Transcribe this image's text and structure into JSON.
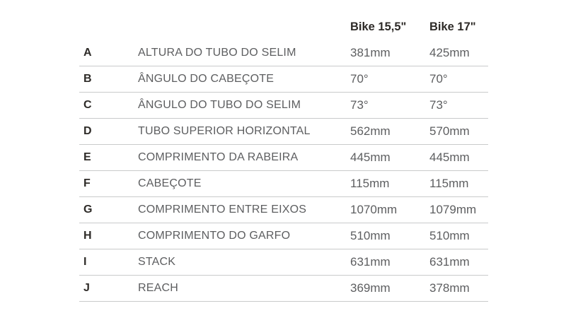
{
  "table": {
    "columns": [
      "Bike 15,5\"",
      "Bike 17\""
    ],
    "rows": [
      {
        "letter": "A",
        "label": "ALTURA DO TUBO DO SELIM",
        "v1": "381mm",
        "v2": "425mm"
      },
      {
        "letter": "B",
        "label": "ÂNGULO DO CABEÇOTE",
        "v1": "70°",
        "v2": "70°"
      },
      {
        "letter": "C",
        "label": "ÂNGULO DO TUBO DO SELIM",
        "v1": "73°",
        "v2": "73°"
      },
      {
        "letter": "D",
        "label": "TUBO SUPERIOR HORIZONTAL",
        "v1": "562mm",
        "v2": "570mm"
      },
      {
        "letter": "E",
        "label": "COMPRIMENTO DA RABEIRA",
        "v1": "445mm",
        "v2": "445mm"
      },
      {
        "letter": "F",
        "label": "CABEÇOTE",
        "v1": "115mm",
        "v2": "115mm"
      },
      {
        "letter": "G",
        "label": "COMPRIMENTO ENTRE EIXOS",
        "v1": "1070mm",
        "v2": "1079mm"
      },
      {
        "letter": "H",
        "label": "COMPRIMENTO DO GARFO",
        "v1": "510mm",
        "v2": "510mm"
      },
      {
        "letter": "I",
        "label": "STACK",
        "v1": "631mm",
        "v2": "631mm"
      },
      {
        "letter": "J",
        "label": "REACH",
        "v1": "369mm",
        "v2": "378mm"
      }
    ],
    "colors": {
      "heading_text": "#2e2b28",
      "body_text": "#5d5e60",
      "divider": "#c9cacb",
      "background": "#ffffff"
    }
  },
  "chart_data": {
    "type": "table",
    "title": "",
    "columns": [
      "",
      "",
      "Bike 15,5\"",
      "Bike 17\""
    ],
    "rows": [
      [
        "A",
        "ALTURA DO TUBO DO SELIM",
        "381mm",
        "425mm"
      ],
      [
        "B",
        "ÂNGULO DO CABEÇOTE",
        "70°",
        "70°"
      ],
      [
        "C",
        "ÂNGULO DO TUBO DO SELIM",
        "73°",
        "73°"
      ],
      [
        "D",
        "TUBO SUPERIOR HORIZONTAL",
        "562mm",
        "570mm"
      ],
      [
        "E",
        "COMPRIMENTO DA RABEIRA",
        "445mm",
        "445mm"
      ],
      [
        "F",
        "CABEÇOTE",
        "115mm",
        "115mm"
      ],
      [
        "G",
        "COMPRIMENTO ENTRE EIXOS",
        "1070mm",
        "1079mm"
      ],
      [
        "H",
        "COMPRIMENTO DO GARFO",
        "510mm",
        "510mm"
      ],
      [
        "I",
        "STACK",
        "631mm",
        "631mm"
      ],
      [
        "J",
        "REACH",
        "369mm",
        "378mm"
      ]
    ],
    "series": [
      {
        "name": "Bike 15,5\"",
        "values_mm": [
          381,
          null,
          null,
          562,
          445,
          115,
          1070,
          510,
          631,
          369
        ],
        "values_deg": [
          null,
          70,
          73,
          null,
          null,
          null,
          null,
          null,
          null,
          null
        ]
      },
      {
        "name": "Bike 17\"",
        "values_mm": [
          425,
          null,
          null,
          570,
          445,
          115,
          1079,
          510,
          631,
          378
        ],
        "values_deg": [
          null,
          70,
          73,
          null,
          null,
          null,
          null,
          null,
          null,
          null
        ]
      }
    ],
    "layout": {
      "grid": "horizontal-dividers-only",
      "header_divider": false,
      "value_alignment": "left"
    }
  }
}
